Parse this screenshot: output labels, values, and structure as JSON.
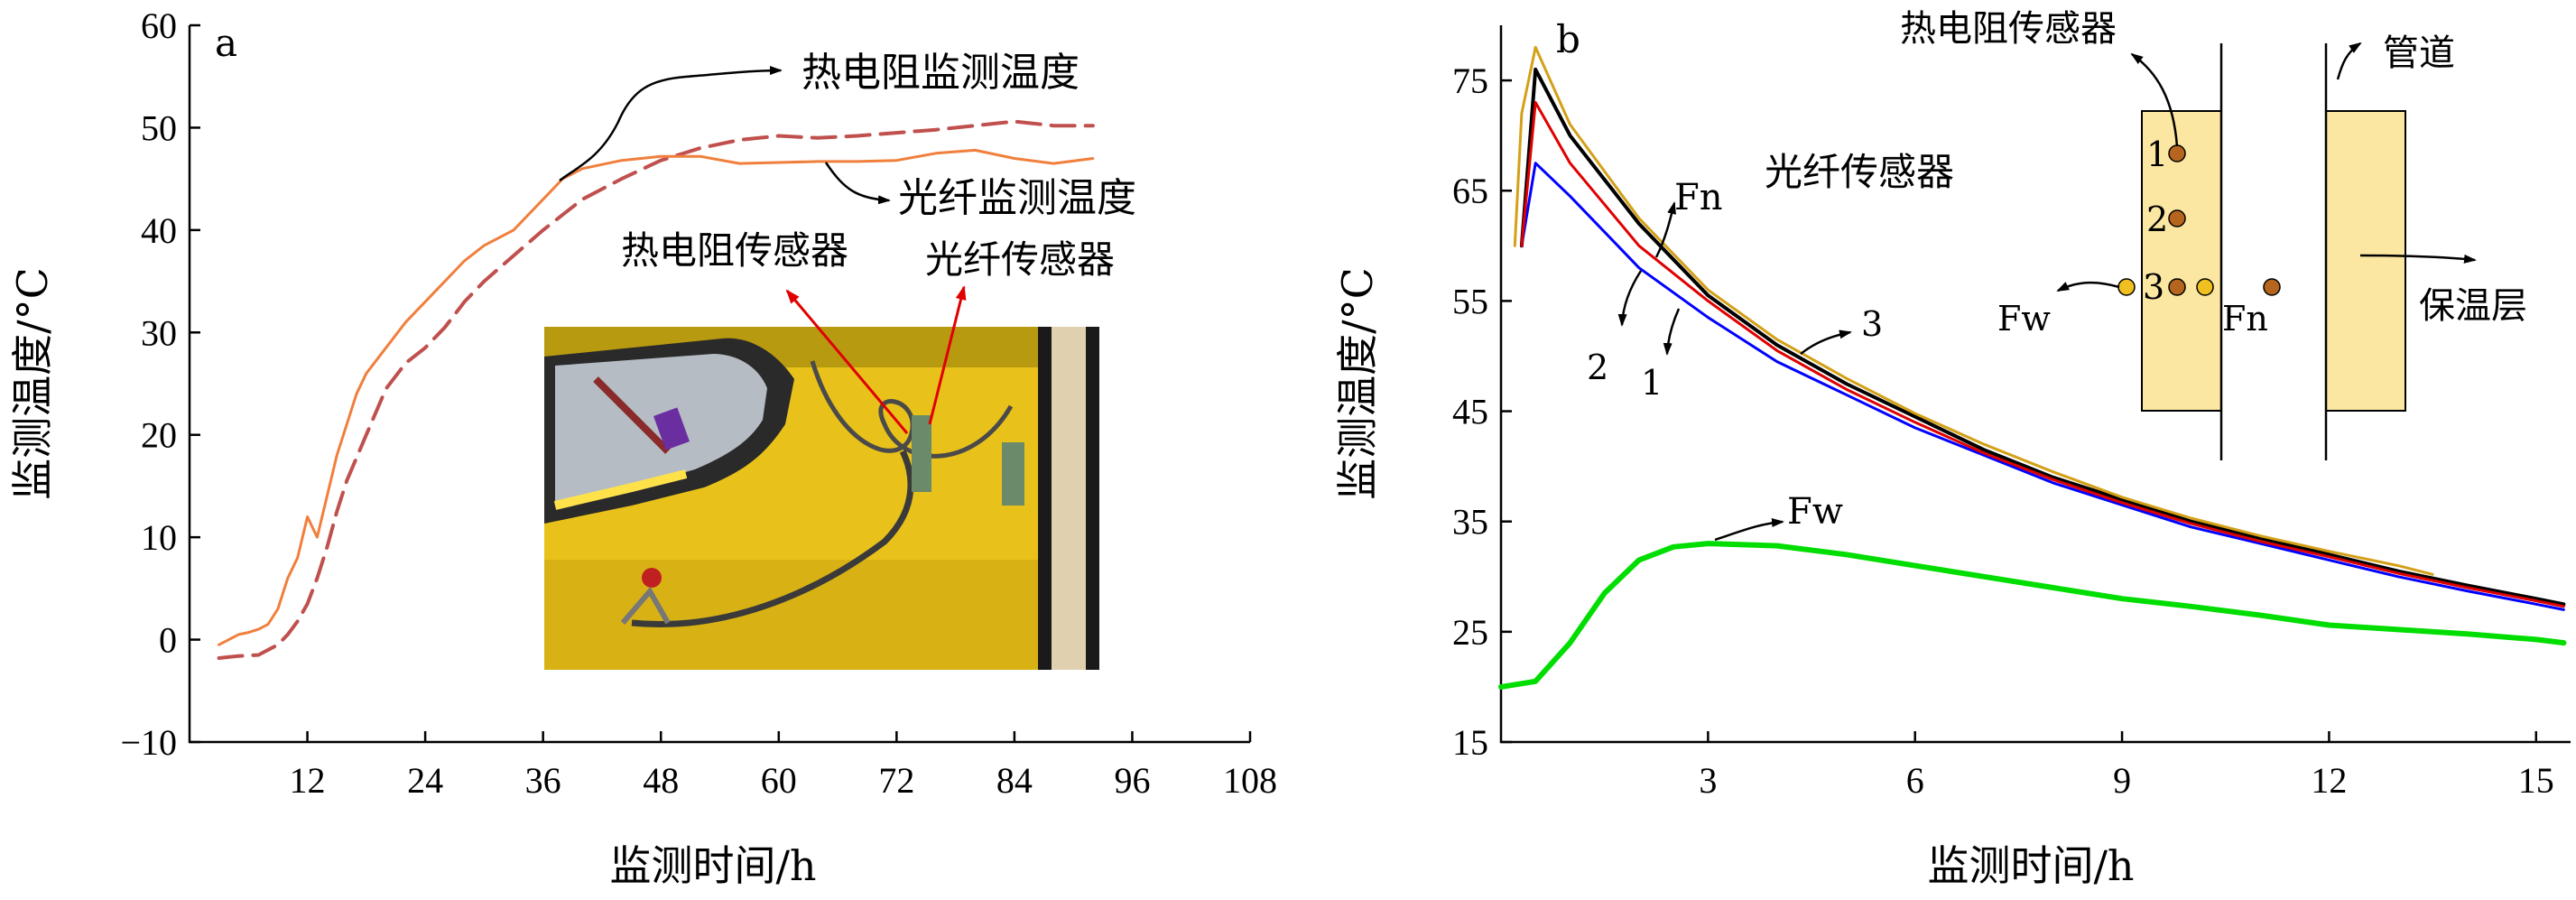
{
  "chart_data": [
    {
      "panel": "a",
      "type": "line",
      "xlabel": "监测时间/h",
      "ylabel": "监测温度/°C",
      "xlim": [
        0,
        108
      ],
      "ylim": [
        -10,
        60
      ],
      "xticks": [
        12,
        24,
        36,
        48,
        60,
        72,
        84,
        96,
        108
      ],
      "yticks": [
        -10,
        0,
        10,
        20,
        30,
        40,
        50,
        60
      ],
      "grid": false,
      "colors": {
        "rtd": "#c0504d",
        "fiber": "#f07f3c"
      },
      "series": [
        {
          "key": "rtd",
          "name": "热电阻监测温度",
          "style": "dashed",
          "x": [
            3,
            5,
            7,
            9,
            10,
            11,
            12,
            13,
            14,
            15,
            16,
            18,
            20,
            22,
            24,
            26,
            28,
            30,
            33,
            36,
            40,
            44,
            48,
            52,
            56,
            60,
            64,
            68,
            72,
            76,
            80,
            84,
            88,
            92
          ],
          "y": [
            -1.8,
            -1.6,
            -1.5,
            -0.5,
            0.5,
            1.8,
            3.5,
            6,
            9,
            12.5,
            15.5,
            20,
            24.5,
            27,
            28.5,
            30.5,
            33,
            35,
            37.5,
            40,
            43,
            45,
            46.8,
            48,
            48.8,
            49.2,
            49,
            49.2,
            49.5,
            49.8,
            50.2,
            50.6,
            50.2,
            50.2
          ]
        },
        {
          "key": "fiber",
          "name": "光纤监测温度",
          "style": "solid",
          "x": [
            3,
            4,
            5,
            6,
            7,
            8,
            9,
            10,
            11,
            12,
            13,
            14,
            15,
            16,
            17,
            18,
            20,
            22,
            24,
            26,
            28,
            30,
            33,
            36,
            38,
            40,
            44,
            48,
            52,
            56,
            60,
            64,
            68,
            72,
            76,
            80,
            84,
            88,
            92
          ],
          "y": [
            -0.5,
            0,
            0.5,
            0.7,
            1,
            1.5,
            3,
            6,
            8,
            12,
            10,
            14,
            18,
            21,
            24,
            26,
            28.5,
            31,
            33,
            35,
            37,
            38.5,
            40,
            43,
            45,
            46,
            46.8,
            47.2,
            47.2,
            46.5,
            46.6,
            46.7,
            46.7,
            46.8,
            47.5,
            47.8,
            47,
            46.5,
            47
          ]
        }
      ],
      "annotations": {
        "a_label": "a",
        "rtd_sensor": "热电阻传感器",
        "fiber_sensor": "光纤传感器"
      }
    },
    {
      "panel": "b",
      "type": "line",
      "xlabel": "监测时间/h",
      "ylabel": "监测温度/°C",
      "xlim": [
        0,
        15.5
      ],
      "ylim": [
        15,
        80
      ],
      "xticks": [
        3,
        6,
        9,
        12,
        15
      ],
      "yticks": [
        15,
        25,
        35,
        45,
        55,
        65,
        75
      ],
      "grid": false,
      "colors": {
        "s1": "#0000ff",
        "s2": "#e00000",
        "s3": "#d4a017",
        "fn": "#000000",
        "fw": "#00dd00"
      },
      "series": [
        {
          "key": "fn",
          "name": "Fn",
          "style": "solid",
          "x": [
            0.3,
            0.5,
            1,
            2,
            3,
            4,
            5,
            6,
            7,
            8,
            9,
            10,
            11,
            12,
            13,
            14,
            15,
            15.4
          ],
          "y": [
            60,
            76,
            70,
            62,
            55.5,
            51,
            47.5,
            44.5,
            41.5,
            39,
            37,
            35,
            33.5,
            32,
            30.5,
            29.2,
            28,
            27.5
          ]
        },
        {
          "key": "s1",
          "name": "1",
          "style": "solid",
          "x": [
            0.3,
            0.5,
            1,
            2,
            3,
            4,
            5,
            6,
            7,
            8,
            9,
            10,
            11,
            12,
            13,
            14,
            15,
            15.4
          ],
          "y": [
            60,
            67.5,
            64.5,
            58,
            53.5,
            49.5,
            46.5,
            43.5,
            41,
            38.5,
            36.5,
            34.5,
            33,
            31.5,
            30,
            28.7,
            27.5,
            27
          ]
        },
        {
          "key": "s2",
          "name": "2",
          "style": "solid",
          "x": [
            0.3,
            0.5,
            1,
            2,
            3,
            4,
            5,
            6,
            7,
            8,
            9,
            10,
            11,
            12,
            13,
            14,
            15,
            15.4
          ],
          "y": [
            60,
            73,
            67.5,
            60,
            55,
            50.5,
            47,
            44,
            41.2,
            38.8,
            36.7,
            34.8,
            33.2,
            31.8,
            30.3,
            29,
            27.8,
            27.3
          ]
        },
        {
          "key": "s3",
          "name": "3",
          "style": "solid",
          "x": [
            0.2,
            0.3,
            0.5,
            1,
            2,
            3,
            4,
            5,
            6,
            7,
            8,
            9,
            10,
            11,
            12,
            13,
            13.5
          ],
          "y": [
            60,
            72,
            78,
            71,
            62.5,
            56,
            51.5,
            48,
            44.8,
            42,
            39.5,
            37.2,
            35.3,
            33.7,
            32.3,
            31,
            30.2
          ]
        },
        {
          "key": "fw",
          "name": "Fw",
          "style": "solid",
          "x": [
            0,
            0.5,
            1,
            1.5,
            2,
            2.5,
            3,
            4,
            5,
            6,
            7,
            8,
            9,
            10,
            11,
            12,
            13,
            14,
            15,
            15.4
          ],
          "y": [
            20,
            20.5,
            24,
            28.5,
            31.5,
            32.7,
            33,
            32.8,
            32,
            31,
            30,
            29,
            28,
            27.3,
            26.5,
            25.6,
            25.2,
            24.8,
            24.3,
            24
          ]
        }
      ],
      "annotations": {
        "b_label": "b",
        "fn": "Fn",
        "fw": "Fw",
        "fiber_sensor": "光纤传感器",
        "rtd_sensor": "热电阻传感器",
        "pipe": "管道",
        "insulation": "保温层",
        "label_1": "1",
        "label_2": "2",
        "label_3": "3",
        "inset_1": "1",
        "inset_2": "2",
        "inset_3": "3",
        "inset_fw": "Fw",
        "inset_fn": "Fn"
      }
    }
  ]
}
